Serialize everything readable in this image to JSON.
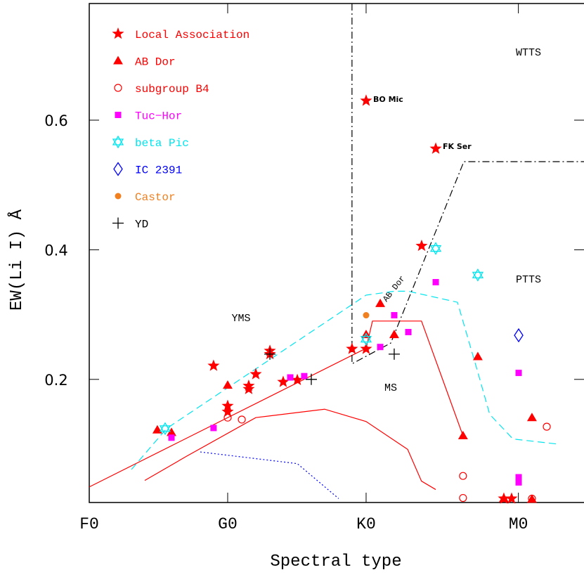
{
  "chart_data": {
    "type": "scatter",
    "xlabel": "Spectral type",
    "ylabel": "EW(Li I) Å",
    "xlim": [
      0,
      35.74
    ],
    "ylim": [
      0.01,
      0.78
    ],
    "xticks": [
      {
        "value": 0,
        "label": "F0"
      },
      {
        "value": 10,
        "label": "G0"
      },
      {
        "value": 20,
        "label": "K0"
      },
      {
        "value": 31,
        "label": "M0"
      }
    ],
    "yticks": [
      0.2,
      0.4,
      0.6
    ],
    "annotations": [
      "BO Mic",
      "FK Ser",
      "AB Dor",
      "YMS",
      "MS",
      "PTTS",
      "WTTS"
    ],
    "series": [
      {
        "name": "Local Association",
        "color": "#ff0000",
        "marker": "star",
        "x": [
          8.98,
          10.0,
          10.0,
          11.52,
          11.52,
          12.03,
          13.05,
          13.05,
          14.01,
          15.03,
          18.98,
          20.0,
          20.0,
          24.01,
          25.03,
          29.95,
          30.51
        ],
        "values": [
          0.221,
          0.159,
          0.15,
          0.19,
          0.185,
          0.208,
          0.244,
          0.239,
          0.196,
          0.199,
          0.247,
          0.247,
          0.63,
          0.406,
          0.556,
          0.016,
          0.016
        ]
      },
      {
        "name": "AB Dor",
        "color": "#ff0000",
        "marker": "triangle",
        "x": [
          4.92,
          5.94,
          10.0,
          20.0,
          21.02,
          22.03,
          28.07,
          27.0,
          31.98,
          29.95,
          31.98
        ],
        "values": [
          0.122,
          0.118,
          0.191,
          0.269,
          0.317,
          0.269,
          0.235,
          0.113,
          0.141,
          0.016,
          0.015
        ]
      },
      {
        "name": "subgroup B4",
        "color": "#ff0000",
        "marker": "circle",
        "x": [
          10.0,
          11.02,
          27.0,
          27.0,
          33.05,
          31.98
        ],
        "values": [
          0.141,
          0.138,
          0.051,
          0.017,
          0.127,
          0.016
        ]
      },
      {
        "name": "Tuc−Hor",
        "color": "#ff00ff",
        "marker": "square",
        "x": [
          5.94,
          8.98,
          14.52,
          15.53,
          21.02,
          22.03,
          23.05,
          25.03,
          31.02,
          31.02,
          31.02
        ],
        "values": [
          0.11,
          0.125,
          0.203,
          0.205,
          0.25,
          0.299,
          0.273,
          0.35,
          0.21,
          0.049,
          0.041
        ]
      },
      {
        "name": "beta Pic",
        "color": "#00e5ee",
        "marker": "hexagram",
        "x": [
          5.48,
          20.0,
          25.03,
          28.07
        ],
        "values": [
          0.124,
          0.262,
          0.402,
          0.361
        ]
      },
      {
        "name": "IC 2391",
        "color": "#0000ff",
        "marker": "diamond",
        "x": [
          31.02
        ],
        "values": [
          0.268
        ]
      },
      {
        "name": "Castor",
        "color": "#f08020",
        "marker": "dot",
        "x": [
          20.0
        ],
        "values": [
          0.299
        ]
      },
      {
        "name": "YD",
        "color": "#000000",
        "marker": "plus",
        "x": [
          13.05,
          16.04,
          22.03
        ],
        "values": [
          0.239,
          0.2,
          0.239
        ]
      }
    ],
    "lines": [
      {
        "color": "#ff0000",
        "style": "solid",
        "x": [
          0,
          20,
          20.46,
          24.0,
          27.0
        ],
        "y": [
          0.034,
          0.248,
          0.29,
          0.29,
          0.113
        ]
      },
      {
        "color": "#ff0000",
        "style": "solid",
        "x": [
          4.01,
          7.0,
          12.03,
          17.0,
          20.0,
          23.0,
          24.0,
          25.03
        ],
        "y": [
          0.044,
          0.081,
          0.141,
          0.154,
          0.135,
          0.092,
          0.043,
          0.03
        ]
      },
      {
        "color": "#00e5ee",
        "style": "dashed",
        "x": [
          3.05,
          5.58,
          20.0,
          22.03,
          23.05,
          26.6,
          28.07,
          28.93,
          30.61,
          33.91
        ],
        "y": [
          0.061,
          0.124,
          0.33,
          0.336,
          0.336,
          0.319,
          0.211,
          0.146,
          0.108,
          0.1
        ]
      },
      {
        "color": "#0000ff",
        "style": "dotted",
        "x": [
          8.02,
          15.03,
          18.02
        ],
        "y": [
          0.088,
          0.07,
          0.016
        ]
      },
      {
        "color": "#000000",
        "style": "dashdot",
        "x": [
          18.98,
          18.98,
          21.78,
          27.06,
          35.74
        ],
        "y": [
          0.78,
          0.224,
          0.256,
          0.536,
          0.536
        ]
      }
    ]
  }
}
